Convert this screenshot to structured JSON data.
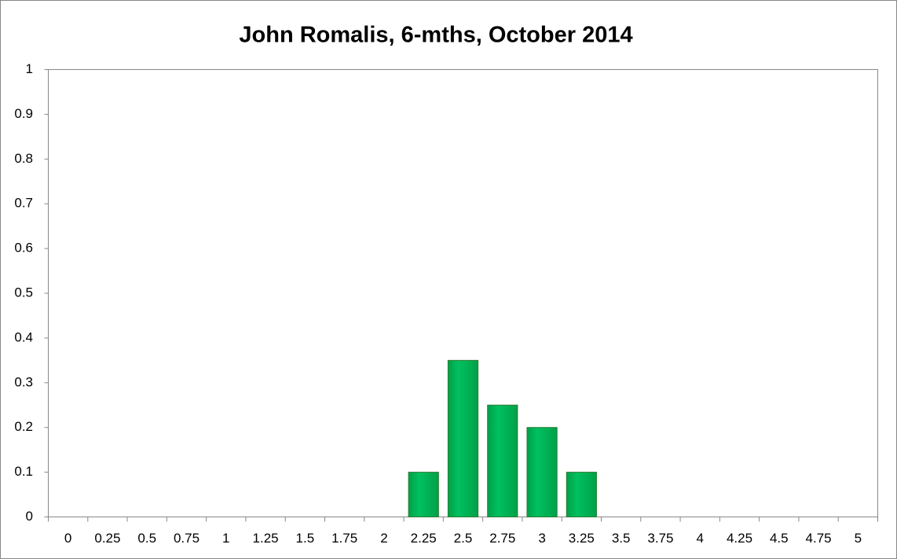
{
  "chart_data": {
    "type": "bar",
    "title": "John Romalis, 6-mths, October 2014",
    "categories": [
      "0",
      "0.25",
      "0.5",
      "0.75",
      "1",
      "1.25",
      "1.5",
      "1.75",
      "2",
      "2.25",
      "2.5",
      "2.75",
      "3",
      "3.25",
      "3.5",
      "3.75",
      "4",
      "4.25",
      "4.5",
      "4.75",
      "5"
    ],
    "values": [
      0,
      0,
      0,
      0,
      0,
      0,
      0,
      0,
      0,
      0.1,
      0.35,
      0.25,
      0.2,
      0.1,
      0,
      0,
      0,
      0,
      0,
      0,
      0
    ],
    "color": "#00b050",
    "ylim": [
      0,
      1
    ],
    "yticks": [
      0,
      0.1,
      0.2,
      0.3,
      0.4,
      0.5,
      0.6,
      0.7,
      0.8,
      0.9,
      1
    ],
    "grid": false
  }
}
